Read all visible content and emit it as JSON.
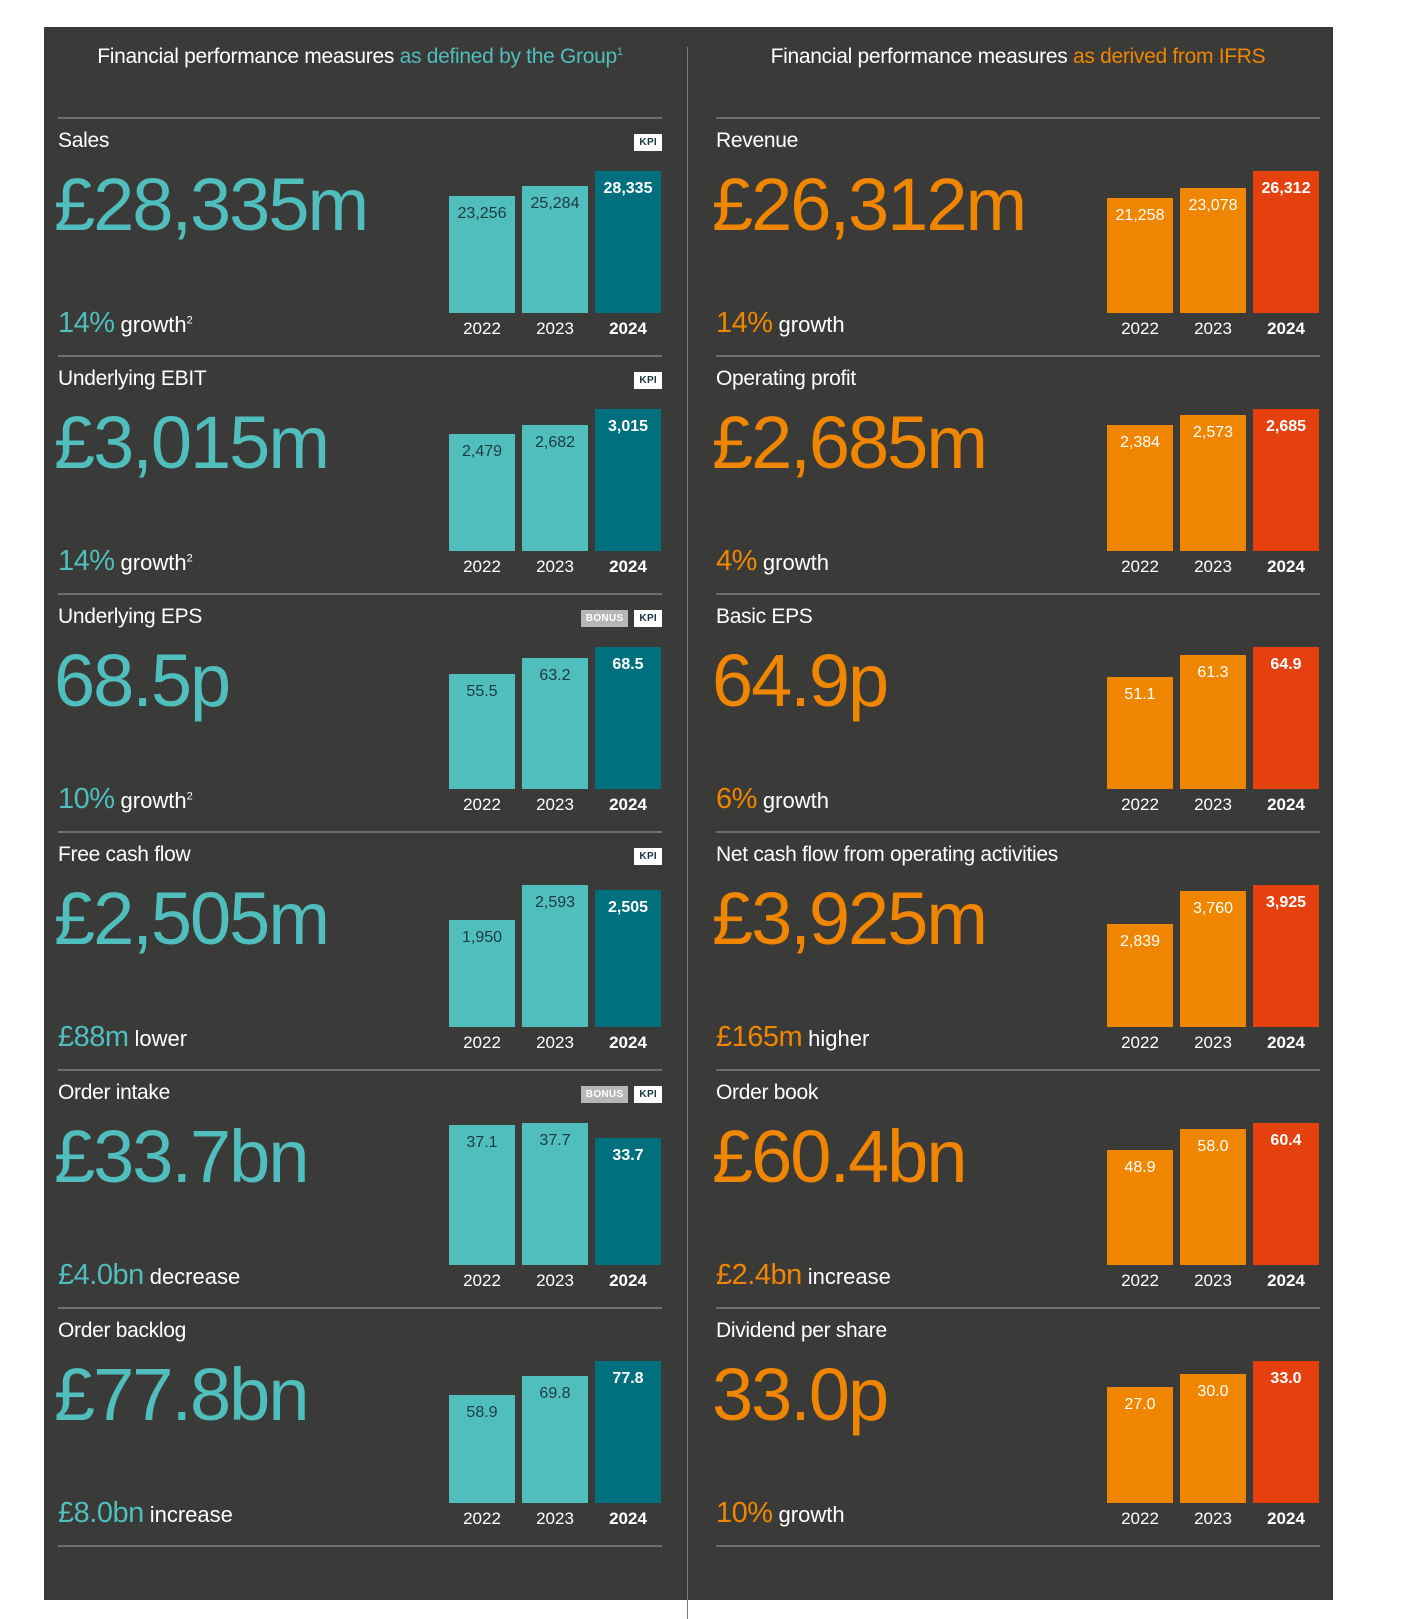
{
  "colors": {
    "panel": "#3a3a39",
    "teal_light": "#4fbebd",
    "teal_dark": "#006f7e",
    "orange": "#f08600",
    "orange_red": "#e5410f",
    "text": "#ffffff"
  },
  "left": {
    "heading_main": "Financial performance measures",
    "heading_accent": "as defined by the Group",
    "heading_note": "1",
    "metrics": [
      {
        "title": "Sales",
        "headline": "£28,335m",
        "change_value": "14%",
        "change_text": "growth",
        "change_note": "2",
        "badges": [
          "KPI"
        ]
      },
      {
        "title": "Underlying EBIT",
        "headline": "£3,015m",
        "change_value": "14%",
        "change_text": "growth",
        "change_note": "2",
        "badges": [
          "KPI"
        ]
      },
      {
        "title": "Underlying EPS",
        "headline": "68.5p",
        "change_value": "10%",
        "change_text": "growth",
        "change_note": "2",
        "badges": [
          "BONUS",
          "KPI"
        ]
      },
      {
        "title": "Free cash flow",
        "headline": "£2,505m",
        "change_value": "£88m",
        "change_text": "lower",
        "change_note": "",
        "badges": [
          "KPI"
        ]
      },
      {
        "title": "Order intake",
        "headline": "£33.7bn",
        "change_value": "£4.0bn",
        "change_text": "decrease",
        "change_note": "",
        "badges": [
          "BONUS",
          "KPI"
        ]
      },
      {
        "title": "Order backlog",
        "headline": "£77.8bn",
        "change_value": "£8.0bn",
        "change_text": "increase",
        "change_note": "",
        "badges": []
      }
    ]
  },
  "right": {
    "heading_main": "Financial performance measures",
    "heading_accent": "as derived from IFRS",
    "metrics": [
      {
        "title": "Revenue",
        "headline": "£26,312m",
        "change_value": "14%",
        "change_text": "growth",
        "change_note": "",
        "badges": []
      },
      {
        "title": "Operating profit",
        "headline": "£2,685m",
        "change_value": "4%",
        "change_text": "growth",
        "change_note": "",
        "badges": []
      },
      {
        "title": "Basic EPS",
        "headline": "64.9p",
        "change_value": "6%",
        "change_text": "growth",
        "change_note": "",
        "badges": []
      },
      {
        "title": "Net cash flow from operating activities",
        "headline": "£3,925m",
        "change_value": "£165m",
        "change_text": "higher",
        "change_note": "",
        "badges": []
      },
      {
        "title": "Order book",
        "headline": "£60.4bn",
        "change_value": "£2.4bn",
        "change_text": "increase",
        "change_note": "",
        "badges": []
      },
      {
        "title": "Dividend per share",
        "headline": "33.0p",
        "change_value": "10%",
        "change_text": "growth",
        "change_note": "",
        "badges": []
      }
    ]
  },
  "chart_data": [
    {
      "type": "bar",
      "group": "left",
      "title": "Sales",
      "categories": [
        "2022",
        "2023",
        "2024"
      ],
      "values": [
        23256,
        25284,
        28335
      ],
      "labels": [
        "23,256",
        "25,284",
        "28,335"
      ]
    },
    {
      "type": "bar",
      "group": "left",
      "title": "Underlying EBIT",
      "categories": [
        "2022",
        "2023",
        "2024"
      ],
      "values": [
        2479,
        2682,
        3015
      ],
      "labels": [
        "2,479",
        "2,682",
        "3,015"
      ]
    },
    {
      "type": "bar",
      "group": "left",
      "title": "Underlying EPS",
      "categories": [
        "2022",
        "2023",
        "2024"
      ],
      "values": [
        55.5,
        63.2,
        68.5
      ],
      "labels": [
        "55.5",
        "63.2",
        "68.5"
      ]
    },
    {
      "type": "bar",
      "group": "left",
      "title": "Free cash flow",
      "categories": [
        "2022",
        "2023",
        "2024"
      ],
      "values": [
        1950,
        2593,
        2505
      ],
      "labels": [
        "1,950",
        "2,593",
        "2,505"
      ]
    },
    {
      "type": "bar",
      "group": "left",
      "title": "Order intake",
      "categories": [
        "2022",
        "2023",
        "2024"
      ],
      "values": [
        37.1,
        37.7,
        33.7
      ],
      "labels": [
        "37.1",
        "37.7",
        "33.7"
      ]
    },
    {
      "type": "bar",
      "group": "left",
      "title": "Order backlog",
      "categories": [
        "2022",
        "2023",
        "2024"
      ],
      "values": [
        58.9,
        69.8,
        77.8
      ],
      "labels": [
        "58.9",
        "69.8",
        "77.8"
      ]
    },
    {
      "type": "bar",
      "group": "right",
      "title": "Revenue",
      "categories": [
        "2022",
        "2023",
        "2024"
      ],
      "values": [
        21258,
        23078,
        26312
      ],
      "labels": [
        "21,258",
        "23,078",
        "26,312"
      ]
    },
    {
      "type": "bar",
      "group": "right",
      "title": "Operating profit",
      "categories": [
        "2022",
        "2023",
        "2024"
      ],
      "values": [
        2384,
        2573,
        2685
      ],
      "labels": [
        "2,384",
        "2,573",
        "2,685"
      ]
    },
    {
      "type": "bar",
      "group": "right",
      "title": "Basic EPS",
      "categories": [
        "2022",
        "2023",
        "2024"
      ],
      "values": [
        51.1,
        61.3,
        64.9
      ],
      "labels": [
        "51.1",
        "61.3",
        "64.9"
      ]
    },
    {
      "type": "bar",
      "group": "right",
      "title": "Net cash flow from operating activities",
      "categories": [
        "2022",
        "2023",
        "2024"
      ],
      "values": [
        2839,
        3760,
        3925
      ],
      "labels": [
        "2,839",
        "3,760",
        "3,925"
      ]
    },
    {
      "type": "bar",
      "group": "right",
      "title": "Order book",
      "categories": [
        "2022",
        "2023",
        "2024"
      ],
      "values": [
        48.9,
        58.0,
        60.4
      ],
      "labels": [
        "48.9",
        "58.0",
        "60.4"
      ]
    },
    {
      "type": "bar",
      "group": "right",
      "title": "Dividend per share",
      "categories": [
        "2022",
        "2023",
        "2024"
      ],
      "values": [
        27.0,
        30.0,
        33.0
      ],
      "labels": [
        "27.0",
        "30.0",
        "33.0"
      ]
    }
  ]
}
